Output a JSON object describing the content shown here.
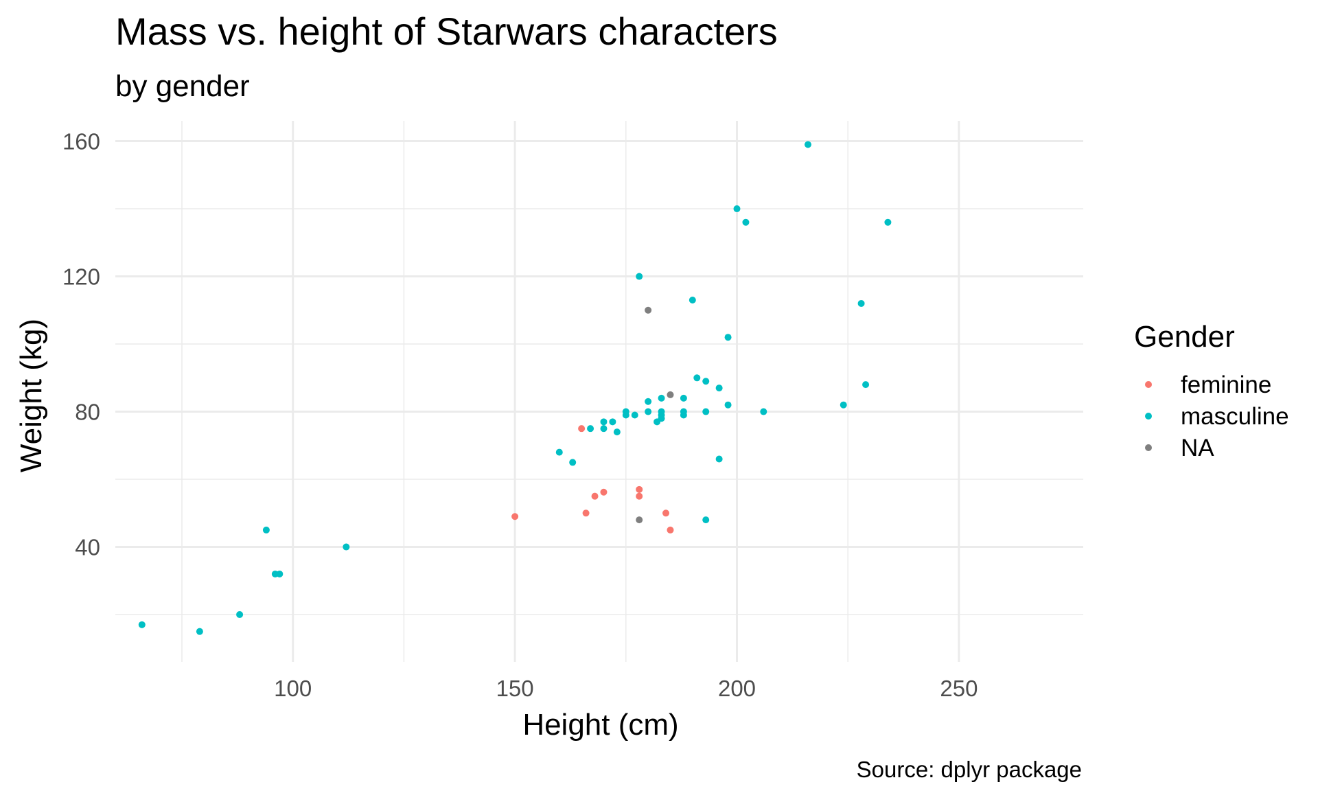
{
  "chart_data": {
    "type": "scatter",
    "title": "Mass vs. height of Starwars characters",
    "subtitle": "by gender",
    "xlabel": "Height (cm)",
    "ylabel": "Weight (kg)",
    "caption": "Source: dplyr package",
    "xlim": [
      60,
      278
    ],
    "ylim": [
      6,
      166
    ],
    "x_major_ticks": [
      100,
      150,
      200,
      250
    ],
    "x_minor_ticks": [
      75,
      125,
      175,
      225
    ],
    "y_major_ticks": [
      40,
      80,
      120,
      160
    ],
    "y_minor_ticks": [
      20,
      60,
      100,
      140
    ],
    "x_tick_labels": [
      "100",
      "150",
      "200",
      "250"
    ],
    "y_tick_labels": [
      "40",
      "80",
      "120",
      "160"
    ],
    "grid": true,
    "legend": {
      "title": "Gender",
      "position": "right",
      "entries": [
        "feminine",
        "masculine",
        "NA"
      ]
    },
    "series": [
      {
        "name": "feminine",
        "color": "#f8766d",
        "points": [
          {
            "x": 150,
            "y": 49
          },
          {
            "x": 165,
            "y": 75
          },
          {
            "x": 166,
            "y": 50
          },
          {
            "x": 168,
            "y": 55
          },
          {
            "x": 170,
            "y": 56.2
          },
          {
            "x": 178,
            "y": 57
          },
          {
            "x": 178,
            "y": 55
          },
          {
            "x": 184,
            "y": 50
          },
          {
            "x": 185,
            "y": 45
          }
        ]
      },
      {
        "name": "masculine",
        "color": "#00bfc4",
        "points": [
          {
            "x": 66,
            "y": 17
          },
          {
            "x": 79,
            "y": 15
          },
          {
            "x": 88,
            "y": 20
          },
          {
            "x": 94,
            "y": 45
          },
          {
            "x": 96,
            "y": 32
          },
          {
            "x": 97,
            "y": 32
          },
          {
            "x": 112,
            "y": 40
          },
          {
            "x": 160,
            "y": 68
          },
          {
            "x": 163,
            "y": 65
          },
          {
            "x": 167,
            "y": 75
          },
          {
            "x": 170,
            "y": 77
          },
          {
            "x": 170,
            "y": 75
          },
          {
            "x": 172,
            "y": 77
          },
          {
            "x": 173,
            "y": 74
          },
          {
            "x": 175,
            "y": 80
          },
          {
            "x": 175,
            "y": 79
          },
          {
            "x": 177,
            "y": 79
          },
          {
            "x": 178,
            "y": 120
          },
          {
            "x": 180,
            "y": 83
          },
          {
            "x": 180,
            "y": 80
          },
          {
            "x": 182,
            "y": 77
          },
          {
            "x": 183,
            "y": 84
          },
          {
            "x": 183,
            "y": 80
          },
          {
            "x": 183,
            "y": 79
          },
          {
            "x": 183,
            "y": 78
          },
          {
            "x": 188,
            "y": 84
          },
          {
            "x": 188,
            "y": 80
          },
          {
            "x": 188,
            "y": 79
          },
          {
            "x": 190,
            "y": 113
          },
          {
            "x": 191,
            "y": 90
          },
          {
            "x": 193,
            "y": 89
          },
          {
            "x": 193,
            "y": 80
          },
          {
            "x": 193,
            "y": 48
          },
          {
            "x": 196,
            "y": 87
          },
          {
            "x": 196,
            "y": 66
          },
          {
            "x": 198,
            "y": 102
          },
          {
            "x": 198,
            "y": 82
          },
          {
            "x": 200,
            "y": 140
          },
          {
            "x": 202,
            "y": 136
          },
          {
            "x": 206,
            "y": 80
          },
          {
            "x": 216,
            "y": 159
          },
          {
            "x": 224,
            "y": 82
          },
          {
            "x": 228,
            "y": 112
          },
          {
            "x": 229,
            "y": 88
          },
          {
            "x": 234,
            "y": 136
          }
        ]
      },
      {
        "name": "NA",
        "color": "#7f7f7f",
        "points": [
          {
            "x": 178,
            "y": 48
          },
          {
            "x": 180,
            "y": 110
          },
          {
            "x": 185,
            "y": 85
          }
        ]
      }
    ]
  }
}
